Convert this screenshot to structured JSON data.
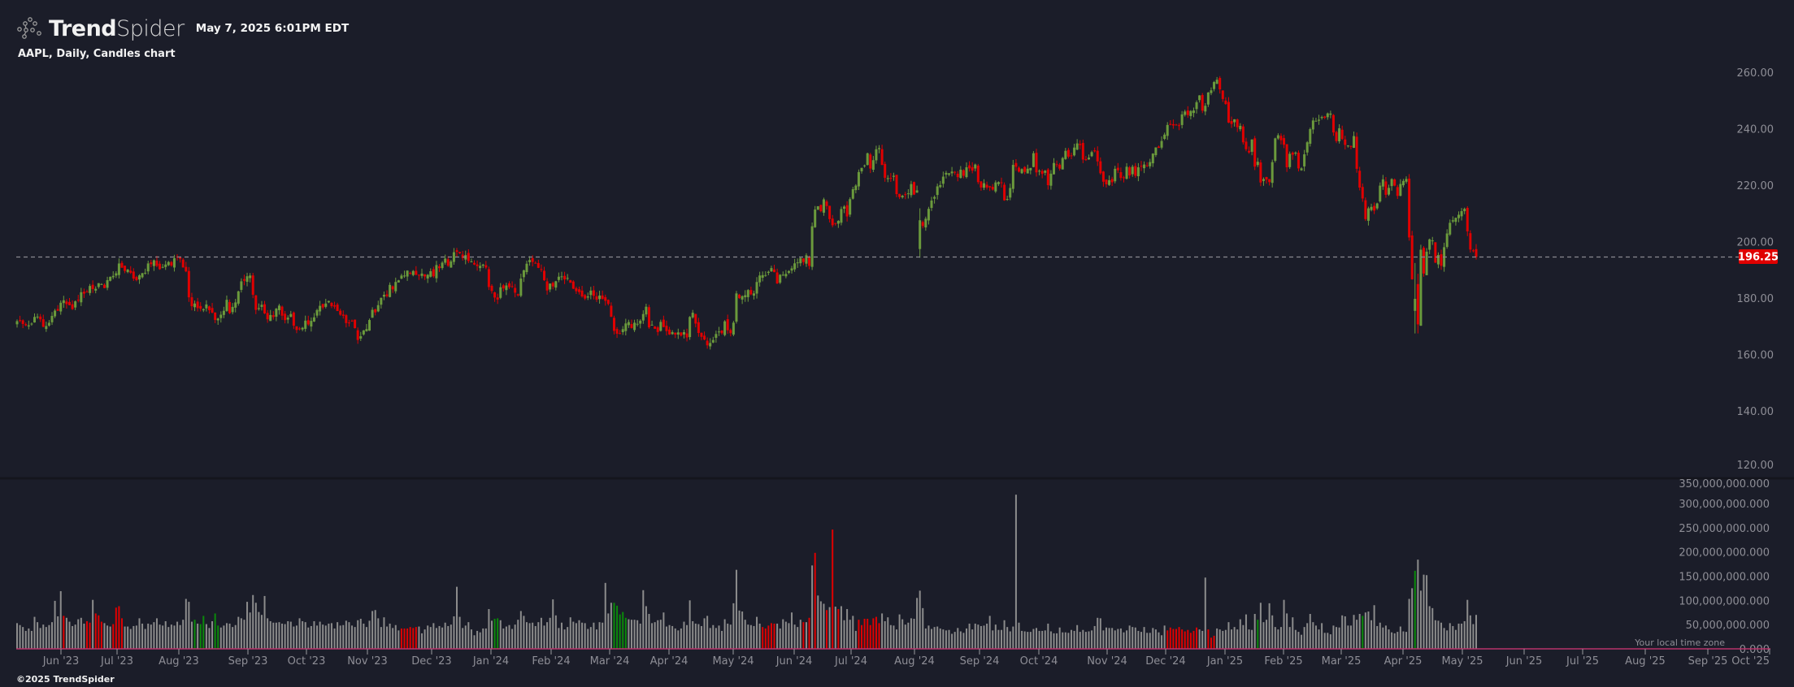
{
  "header": {
    "brand_bold": "Trend",
    "brand_light": "Spider",
    "datetime": "May 7, 2025 6:01PM EDT"
  },
  "chart_title": "AAPL, Daily, Candles chart",
  "footer": "©2025 TrendSpider",
  "timezone_note": "Your local time zone",
  "colors": {
    "background": "#1b1d29",
    "up": "#6b9a3c",
    "down": "#e00000",
    "volume": "#8c8c8c",
    "volume_up": "#0a8a0a",
    "volume_down": "#e00000",
    "last_price_badge": "#e00000"
  },
  "chart_data": {
    "type": "candlestick",
    "symbol": "AAPL",
    "interval": "Daily",
    "ylim": [
      120,
      260
    ],
    "y_ticks": [
      "260.00",
      "240.00",
      "220.00",
      "200.00",
      "180.00",
      "160.00",
      "140.00",
      "120.00"
    ],
    "last_price": "196.25",
    "volume_ylim": [
      0,
      350000000
    ],
    "volume_ticks": [
      "350,000,000.000",
      "300,000,000.000",
      "250,000,000.000",
      "200,000,000.000",
      "150,000,000.000",
      "100,000,000.000",
      "50,000,000.000",
      "0.000"
    ],
    "x_ticks": [
      "Jun '23",
      "Jul '23",
      "Aug '23",
      "Sep '23",
      "Oct '23",
      "Nov '23",
      "Dec '23",
      "Jan '24",
      "Feb '24",
      "Mar '24",
      "Apr '24",
      "May '24",
      "Jun '24",
      "Jul '24",
      "Aug '24",
      "Sep '24",
      "Oct '24",
      "Nov '24",
      "Dec '24",
      "Jan '25",
      "Feb '25",
      "Mar '25",
      "Apr '25",
      "May '25",
      "Jun '25",
      "Jul '25",
      "Aug '25",
      "Sep '25",
      "Oct '25"
    ],
    "closes": [
      173.56,
      173.75,
      172.57,
      172.07,
      172.07,
      172.69,
      175.05,
      175.16,
      174.2,
      171.56,
      171.84,
      172.99,
      175.43,
      177.3,
      177.25,
      180.09,
      180.95,
      179.58,
      179.21,
      177.82,
      180.57,
      180.96,
      183.79,
      183.31,
      183.95,
      186.01,
      184.92,
      185.01,
      187.0,
      186.68,
      185.27,
      188.06,
      189.25,
      189.59,
      190.5,
      193.97,
      192.46,
      191.33,
      191.81,
      190.68,
      188.61,
      188.08,
      189.77,
      190.54,
      190.69,
      193.99,
      193.73,
      195.1,
      193.13,
      191.94,
      192.75,
      193.62,
      194.5,
      193.22,
      195.83,
      196.45,
      195.61,
      192.58,
      191.17,
      181.99,
      178.85,
      179.8,
      178.19,
      177.97,
      177.79,
      179.46,
      177.45,
      176.57,
      174.0,
      174.49,
      175.84,
      177.23,
      181.12,
      176.38,
      178.61,
      180.19,
      184.12,
      187.65,
      187.87,
      189.46,
      189.7,
      182.91,
      177.56,
      178.18,
      179.36,
      176.3,
      174.21,
      175.74,
      175.01,
      177.97,
      179.07,
      175.49,
      173.93,
      174.79,
      176.08,
      171.96,
      170.43,
      170.69,
      171.21,
      173.75,
      172.4,
      173.66,
      174.91,
      177.49,
      178.99,
      178.39,
      179.8,
      180.71,
      178.85,
      178.72,
      177.15,
      175.84,
      175.46,
      172.88,
      173.0,
      173.44,
      171.1,
      166.89,
      168.22,
      170.29,
      170.77,
      173.97,
      177.57,
      176.65,
      179.23,
      181.82,
      182.89,
      182.41,
      186.4,
      184.8,
      187.44,
      188.01,
      189.71,
      189.69,
      191.45,
      190.64,
      191.31,
      189.97,
      189.79,
      190.4,
      189.37,
      189.95,
      191.24,
      189.43,
      193.42,
      192.32,
      194.27,
      195.71,
      193.18,
      194.71,
      197.96,
      198.11,
      197.57,
      195.89,
      196.94,
      194.83,
      194.68,
      193.6,
      193.05,
      193.15,
      193.58,
      192.53,
      185.64,
      184.25,
      181.91,
      181.18,
      185.56,
      185.14,
      186.19,
      185.59,
      185.92,
      183.63,
      182.68,
      188.63,
      191.56,
      193.89,
      195.18,
      194.5,
      194.17,
      192.42,
      191.73,
      188.04,
      184.4,
      186.86,
      185.85,
      187.68,
      189.3,
      189.41,
      188.32,
      188.85,
      187.15,
      185.04,
      184.15,
      183.86,
      182.31,
      181.56,
      182.32,
      184.37,
      182.52,
      181.16,
      182.63,
      181.42,
      180.75,
      179.66,
      175.1,
      170.12,
      169.12,
      169.0,
      170.73,
      172.75,
      173.23,
      171.13,
      173.0,
      172.62,
      173.72,
      176.08,
      178.67,
      171.37,
      172.28,
      170.85,
      169.71,
      173.31,
      171.48,
      170.03,
      168.84,
      169.65,
      168.82,
      169.58,
      168.45,
      169.67,
      167.78,
      175.04,
      176.55,
      172.69,
      169.38,
      168.0,
      167.04,
      165.0,
      165.84,
      166.9,
      169.02,
      169.89,
      169.3,
      173.5,
      170.33,
      169.3,
      173.03,
      183.38,
      181.71,
      182.4,
      182.74,
      184.57,
      183.05,
      183.38,
      187.43,
      189.72,
      189.84,
      189.87,
      191.04,
      192.35,
      190.9,
      186.88,
      189.98,
      189.99,
      190.29,
      191.29,
      192.25,
      194.03,
      194.35,
      195.87,
      194.48,
      196.89,
      193.12,
      207.15,
      213.07,
      214.24,
      212.49,
      216.67,
      214.29,
      209.68,
      207.49,
      208.14,
      209.07,
      213.25,
      214.1,
      210.62,
      216.75,
      220.27,
      221.55,
      226.34,
      227.82,
      228.68,
      232.98,
      227.57,
      230.54,
      234.4,
      234.82,
      228.88,
      224.31,
      224.18,
      223.96,
      225.01,
      218.54,
      217.49,
      217.96,
      218.24,
      218.8,
      222.08,
      218.36,
      219.86,
      209.27,
      207.23,
      209.82,
      213.31,
      216.24,
      217.53,
      221.27,
      221.72,
      224.72,
      226.05,
      225.89,
      226.51,
      226.4,
      224.53,
      227.18,
      225.0,
      228.03,
      227.63,
      226.84,
      229.0,
      222.77,
      220.85,
      222.38,
      220.82,
      220.91,
      220.11,
      222.66,
      222.77,
      222.5,
      216.32,
      216.79,
      220.69,
      228.87,
      228.2,
      226.47,
      227.37,
      226.37,
      227.52,
      227.79,
      233.0,
      226.21,
      226.78,
      225.67,
      226.8,
      221.69,
      225.77,
      229.54,
      229.04,
      227.55,
      231.3,
      233.85,
      231.78,
      232.15,
      235.0,
      236.48,
      235.86,
      230.76,
      230.57,
      231.41,
      233.4,
      233.67,
      230.1,
      225.91,
      222.91,
      222.01,
      223.45,
      222.72,
      227.48,
      226.96,
      224.23,
      224.23,
      228.22,
      225.12,
      228.22,
      225.0,
      228.02,
      228.28,
      229.0,
      228.52,
      229.87,
      232.87,
      235.06,
      234.93,
      237.33,
      239.59,
      243.01,
      243.04,
      242.84,
      243.0,
      242.65,
      246.75,
      247.77,
      246.49,
      247.96,
      248.13,
      251.04,
      253.48,
      248.05,
      249.79,
      254.49,
      255.27,
      258.2,
      259.02,
      255.59,
      252.2,
      250.42,
      243.85,
      243.36,
      245.0,
      242.21,
      242.7,
      236.85,
      234.4,
      233.28,
      237.87,
      228.26,
      229.98,
      222.64,
      223.83,
      223.66,
      222.78,
      229.86,
      238.26,
      239.36,
      237.59,
      236.0,
      228.01,
      232.8,
      232.47,
      233.22,
      227.63,
      227.65,
      232.62,
      236.87,
      241.53,
      244.6,
      244.47,
      244.87,
      245.83,
      245.55,
      247.1,
      247.04,
      240.36,
      237.3,
      241.84,
      238.03,
      235.93,
      235.74,
      235.33,
      239.07,
      227.48,
      220.84,
      216.98,
      209.68,
      213.49,
      214.0,
      212.69,
      215.24,
      221.53,
      223.75,
      218.27,
      220.73,
      223.85,
      221.53,
      217.9,
      222.13,
      223.19,
      223.89,
      203.19,
      188.38,
      181.46,
      172.42,
      198.85,
      190.42,
      198.15,
      202.52,
      202.14,
      194.27,
      196.98,
      193.16,
      199.74,
      204.6,
      208.37,
      209.28,
      210.14,
      211.21,
      212.5,
      213.32,
      205.35,
      198.89,
      198.51,
      196.25
    ],
    "ohlc_overrides": {
      "310": [
        199.09,
        213.5,
        196.0,
        209.27
      ],
      "480": [
        177.2,
        194.15,
        169.21,
        181.46
      ],
      "481": [
        186.7,
        190.34,
        169.21,
        172.42
      ],
      "482": [
        171.95,
        200.61,
        171.89,
        198.85
      ]
    },
    "volume_millions": [
      53,
      49,
      45,
      37,
      42,
      37,
      66,
      55,
      43,
      50,
      45,
      49,
      55,
      99,
      67,
      119,
      68,
      64,
      56,
      47,
      50,
      61,
      64,
      52,
      57,
      54,
      101,
      73,
      69,
      56,
      53,
      48,
      46,
      51,
      85,
      88,
      63,
      46,
      46,
      41,
      47,
      48,
      63,
      52,
      41,
      52,
      50,
      55,
      63,
      50,
      48,
      57,
      45,
      50,
      48,
      56,
      49,
      60,
      103,
      97,
      56,
      60,
      52,
      51,
      68,
      51,
      43,
      57,
      73,
      48,
      44,
      48,
      53,
      52,
      45,
      49,
      66,
      63,
      60,
      97,
      75,
      111,
      95,
      76,
      70,
      109,
      63,
      57,
      54,
      54,
      55,
      52,
      51,
      57,
      56,
      46,
      48,
      63,
      57,
      55,
      44,
      47,
      57,
      48,
      56,
      50,
      48,
      52,
      53,
      42,
      55,
      48,
      49,
      58,
      55,
      48,
      45,
      59,
      62,
      52,
      45,
      58,
      78,
      80,
      63,
      45,
      65,
      46,
      52,
      43,
      49,
      38,
      42,
      42,
      42,
      45,
      43,
      45,
      46,
      32,
      40,
      48,
      45,
      53,
      43,
      47,
      44,
      54,
      47,
      50,
      67,
      128,
      66,
      43,
      48,
      55,
      40,
      28,
      37,
      34,
      42,
      42,
      82,
      58,
      62,
      63,
      59,
      42,
      46,
      49,
      41,
      50,
      60,
      78,
      68,
      55,
      53,
      54,
      47,
      55,
      64,
      48,
      55,
      64,
      102,
      69,
      43,
      54,
      40,
      45,
      65,
      56,
      53,
      59,
      54,
      53,
      41,
      45,
      54,
      40,
      55,
      54,
      136,
      73,
      95,
      95,
      89,
      71,
      76,
      64,
      61,
      60,
      60,
      59,
      52,
      121,
      88,
      72,
      53,
      55,
      59,
      60,
      75,
      46,
      49,
      47,
      42,
      38,
      42,
      56,
      49,
      100,
      57,
      52,
      51,
      47,
      63,
      68,
      43,
      49,
      43,
      48,
      37,
      61,
      52,
      50,
      94,
      163,
      79,
      77,
      60,
      50,
      49,
      47,
      66,
      52,
      45,
      42,
      48,
      53,
      52,
      52,
      42,
      61,
      56,
      53,
      75,
      50,
      45,
      60,
      55,
      55,
      64,
      172,
      198,
      110,
      98,
      93,
      80,
      86,
      246,
      87,
      82,
      88,
      59,
      82,
      60,
      68,
      37,
      60,
      49,
      62,
      62,
      49,
      63,
      66,
      53,
      73,
      57,
      65,
      49,
      48,
      40,
      71,
      61,
      50,
      54,
      63,
      62,
      105,
      120,
      84,
      42,
      48,
      41,
      45,
      46,
      42,
      40,
      38,
      39,
      31,
      35,
      43,
      36,
      33,
      42,
      52,
      40,
      52,
      50,
      47,
      48,
      52,
      68,
      38,
      50,
      39,
      39,
      59,
      45,
      36,
      46,
      318,
      54,
      37,
      36,
      35,
      35,
      41,
      43,
      37,
      37,
      38,
      52,
      36,
      32,
      32,
      44,
      34,
      34,
      33,
      39,
      37,
      49,
      35,
      39,
      35,
      36,
      38,
      47,
      64,
      63,
      38,
      44,
      43,
      43,
      38,
      41,
      42,
      34,
      38,
      48,
      45,
      44,
      37,
      35,
      45,
      33,
      33,
      43,
      40,
      34,
      28,
      48,
      38,
      44,
      41,
      41,
      45,
      40,
      36,
      39,
      33,
      37,
      44,
      40,
      37,
      147,
      40,
      23,
      27,
      42,
      40,
      37,
      39,
      55,
      40,
      45,
      40,
      61,
      49,
      71,
      40,
      39,
      72,
      60,
      95,
      55,
      60,
      94,
      69,
      45,
      40,
      45,
      101,
      73,
      45,
      65,
      39,
      35,
      29,
      45,
      53,
      72,
      55,
      48,
      40,
      53,
      33,
      33,
      30,
      48,
      45,
      44,
      69,
      67,
      48,
      48,
      70,
      60,
      72,
      68,
      75,
      77,
      59,
      90,
      47,
      54,
      44,
      48,
      40,
      34,
      32,
      35,
      46,
      36,
      35,
      103,
      125,
      161,
      184,
      120,
      153,
      152,
      88,
      84,
      59,
      58,
      54,
      43,
      38,
      53,
      47,
      39,
      52,
      52,
      57,
      101,
      69,
      51,
      70
    ],
    "volume_highlights": [
      {
        "from": 16,
        "to": 16,
        "color": "down"
      },
      {
        "from": 24,
        "to": 25,
        "color": "down"
      },
      {
        "from": 27,
        "to": 29,
        "color": "down"
      },
      {
        "from": 33,
        "to": 36,
        "color": "down"
      },
      {
        "from": 61,
        "to": 61,
        "color": "up"
      },
      {
        "from": 63,
        "to": 64,
        "color": "up"
      },
      {
        "from": 68,
        "to": 69,
        "color": "up"
      },
      {
        "from": 132,
        "to": 137,
        "color": "down"
      },
      {
        "from": 164,
        "to": 165,
        "color": "up"
      },
      {
        "from": 205,
        "to": 209,
        "color": "up"
      },
      {
        "from": 256,
        "to": 260,
        "color": "down"
      },
      {
        "from": 270,
        "to": 270,
        "color": "down"
      },
      {
        "from": 272,
        "to": 272,
        "color": "down"
      },
      {
        "from": 274,
        "to": 274,
        "color": "down"
      },
      {
        "from": 278,
        "to": 278,
        "color": "down"
      },
      {
        "from": 280,
        "to": 280,
        "color": "down"
      },
      {
        "from": 282,
        "to": 282,
        "color": "down"
      },
      {
        "from": 289,
        "to": 296,
        "color": "down"
      },
      {
        "from": 395,
        "to": 405,
        "color": "down"
      },
      {
        "from": 409,
        "to": 411,
        "color": "down"
      },
      {
        "from": 426,
        "to": 426,
        "color": "up"
      },
      {
        "from": 462,
        "to": 462,
        "color": "up"
      },
      {
        "from": 480,
        "to": 480,
        "color": "up"
      }
    ]
  }
}
